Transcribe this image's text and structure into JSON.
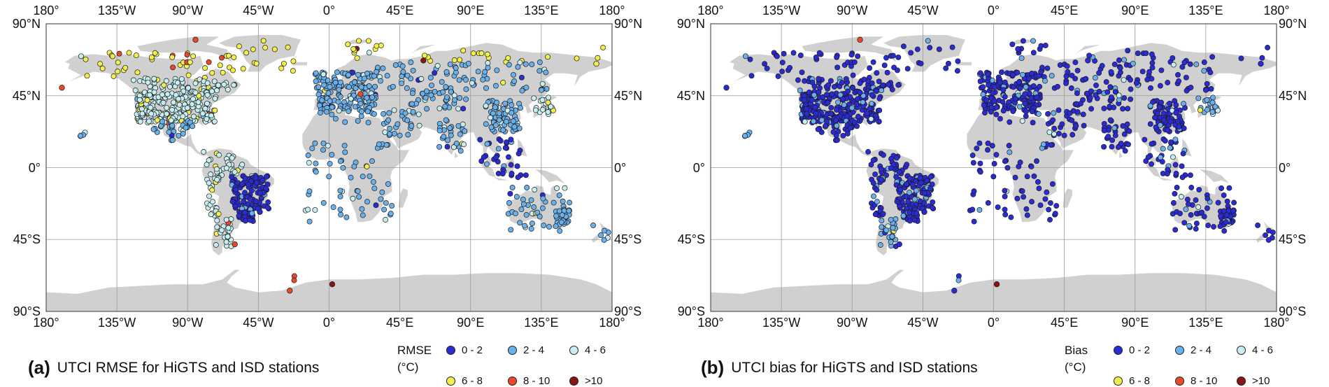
{
  "map_data": {
    "lon_range": [
      -180,
      180
    ],
    "lat_range": [
      -90,
      90
    ],
    "grid_step_deg": 45,
    "colors": {
      "land": "#d0d0d0",
      "ocean": "#ffffff",
      "grid": "#9a9a9a",
      "frame": "#555555",
      "marker_outline": "#1a1a1a"
    },
    "lon_labels": [
      "180°",
      "135°W",
      "90°W",
      "45°W",
      "0°",
      "45°E",
      "90°E",
      "135°E",
      "180°"
    ],
    "lat_labels": [
      "90°N",
      "45°N",
      "0°",
      "45°S",
      "90°S"
    ]
  },
  "panels": [
    {
      "id": "a",
      "tag": "(a)",
      "caption": "UTCI RMSE for HiGTS and ISD stations",
      "legend_title": "RMSE",
      "legend_unit": "(°C)",
      "legend": [
        {
          "label": "0 - 2",
          "color": "#2b2bd6"
        },
        {
          "label": "2 - 4",
          "color": "#6ab0ea"
        },
        {
          "label": "4 - 6",
          "color": "#c7eff2"
        },
        {
          "label": "6 - 8",
          "color": "#f3f04c"
        },
        {
          "label": "8 - 10",
          "color": "#e8492b"
        },
        {
          "label": ">10",
          "color": "#8b1414"
        }
      ],
      "region_classes": {
        "arctic": 3,
        "us": 2,
        "canada": 2,
        "mexico": 1,
        "south_america_n": 2,
        "brazil": 0,
        "patagonia": 2,
        "europe": 1,
        "russia": 1,
        "central_asia": 1,
        "middle_east": 1,
        "india": 1,
        "china": 1,
        "japan": 2,
        "southeast_asia": 0,
        "africa": 1,
        "australia": 1,
        "nz": 1,
        "antarctica": 4,
        "hawaii": 1
      }
    },
    {
      "id": "b",
      "tag": "(b)",
      "caption": "UTCI bias for HiGTS and ISD stations",
      "legend_title": "Bias",
      "legend_unit": "(°C)",
      "legend": [
        {
          "label": "0 - 2",
          "color": "#2b2bd6"
        },
        {
          "label": "2 - 4",
          "color": "#6ab0ea"
        },
        {
          "label": "4 - 6",
          "color": "#c7eff2"
        },
        {
          "label": "6 - 8",
          "color": "#f3f04c"
        },
        {
          "label": "8 - 10",
          "color": "#e8492b"
        },
        {
          "label": ">10",
          "color": "#8b1414"
        }
      ],
      "region_classes": {
        "arctic": 0,
        "us": 0,
        "canada": 0,
        "mexico": 0,
        "south_america_n": 0,
        "brazil": 0,
        "patagonia": 1,
        "europe": 0,
        "russia": 0,
        "central_asia": 0,
        "middle_east": 0,
        "india": 0,
        "china": 0,
        "japan": 1,
        "southeast_asia": 0,
        "africa": 0,
        "australia": 0,
        "nz": 0,
        "antarctica": 0,
        "hawaii": 1
      }
    }
  ]
}
